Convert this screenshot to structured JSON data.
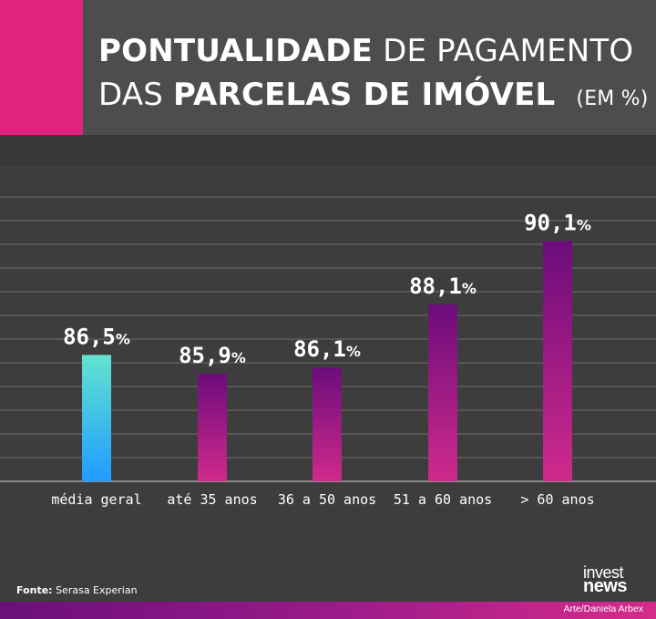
{
  "header": {
    "title_bold_1": "PONTUALIDADE",
    "title_light_1": "DE PAGAMENTO",
    "title_light_2": "DAS",
    "title_bold_2": "PARCELAS DE IMÓVEL",
    "title_unit": "(EM %)",
    "accent_color": "#e0237f"
  },
  "chart_data": {
    "type": "bar",
    "title": "PONTUALIDADE DE PAGAMENTO DAS PARCELAS DE IMÓVEL (EM %)",
    "categories": [
      "média geral",
      "até 35 anos",
      "36 a 50 anos",
      "51 a 60 anos",
      "> 60 anos"
    ],
    "values": [
      86.5,
      85.9,
      86.1,
      88.1,
      90.1
    ],
    "value_labels": [
      "86,5",
      "85,9",
      "86,1",
      "88,1",
      "90,1"
    ],
    "value_suffix": "%",
    "xlabel": "",
    "ylabel": "",
    "ylim": [
      82.5,
      91.5
    ],
    "grid": true,
    "legend": "none",
    "colors": {
      "highlight_top": "#63e3cf",
      "highlight_bottom": "#1f9cff",
      "bar_top": "#6c0c7c",
      "bar_bottom": "#cf2a8c"
    }
  },
  "footer": {
    "source_key": "Fonte:",
    "source_value": "Serasa Experian",
    "credit": "Arte/Daniela Arbex",
    "logo_top": "invest",
    "logo_bottom": "news"
  }
}
